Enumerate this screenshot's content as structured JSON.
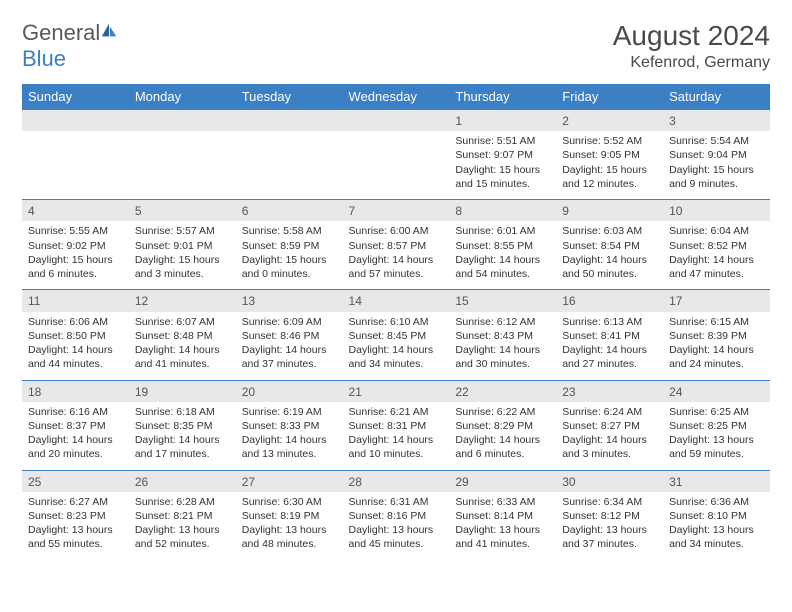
{
  "logo": {
    "text1": "General",
    "text2": "Blue"
  },
  "title": "August 2024",
  "subtitle": "Kefenrod, Germany",
  "colors": {
    "header_bg": "#3b7fc4",
    "header_text": "#ffffff",
    "daynum_bg": "#e8e8e8",
    "border": "#3b7fc4",
    "text": "#333333",
    "title_text": "#4a4a4a"
  },
  "day_names": [
    "Sunday",
    "Monday",
    "Tuesday",
    "Wednesday",
    "Thursday",
    "Friday",
    "Saturday"
  ],
  "weeks": [
    [
      {
        "num": "",
        "lines": [
          "",
          "",
          "",
          ""
        ]
      },
      {
        "num": "",
        "lines": [
          "",
          "",
          "",
          ""
        ]
      },
      {
        "num": "",
        "lines": [
          "",
          "",
          "",
          ""
        ]
      },
      {
        "num": "",
        "lines": [
          "",
          "",
          "",
          ""
        ]
      },
      {
        "num": "1",
        "lines": [
          "Sunrise: 5:51 AM",
          "Sunset: 9:07 PM",
          "Daylight: 15 hours",
          "and 15 minutes."
        ]
      },
      {
        "num": "2",
        "lines": [
          "Sunrise: 5:52 AM",
          "Sunset: 9:05 PM",
          "Daylight: 15 hours",
          "and 12 minutes."
        ]
      },
      {
        "num": "3",
        "lines": [
          "Sunrise: 5:54 AM",
          "Sunset: 9:04 PM",
          "Daylight: 15 hours",
          "and 9 minutes."
        ]
      }
    ],
    [
      {
        "num": "4",
        "lines": [
          "Sunrise: 5:55 AM",
          "Sunset: 9:02 PM",
          "Daylight: 15 hours",
          "and 6 minutes."
        ]
      },
      {
        "num": "5",
        "lines": [
          "Sunrise: 5:57 AM",
          "Sunset: 9:01 PM",
          "Daylight: 15 hours",
          "and 3 minutes."
        ]
      },
      {
        "num": "6",
        "lines": [
          "Sunrise: 5:58 AM",
          "Sunset: 8:59 PM",
          "Daylight: 15 hours",
          "and 0 minutes."
        ]
      },
      {
        "num": "7",
        "lines": [
          "Sunrise: 6:00 AM",
          "Sunset: 8:57 PM",
          "Daylight: 14 hours",
          "and 57 minutes."
        ]
      },
      {
        "num": "8",
        "lines": [
          "Sunrise: 6:01 AM",
          "Sunset: 8:55 PM",
          "Daylight: 14 hours",
          "and 54 minutes."
        ]
      },
      {
        "num": "9",
        "lines": [
          "Sunrise: 6:03 AM",
          "Sunset: 8:54 PM",
          "Daylight: 14 hours",
          "and 50 minutes."
        ]
      },
      {
        "num": "10",
        "lines": [
          "Sunrise: 6:04 AM",
          "Sunset: 8:52 PM",
          "Daylight: 14 hours",
          "and 47 minutes."
        ]
      }
    ],
    [
      {
        "num": "11",
        "lines": [
          "Sunrise: 6:06 AM",
          "Sunset: 8:50 PM",
          "Daylight: 14 hours",
          "and 44 minutes."
        ]
      },
      {
        "num": "12",
        "lines": [
          "Sunrise: 6:07 AM",
          "Sunset: 8:48 PM",
          "Daylight: 14 hours",
          "and 41 minutes."
        ]
      },
      {
        "num": "13",
        "lines": [
          "Sunrise: 6:09 AM",
          "Sunset: 8:46 PM",
          "Daylight: 14 hours",
          "and 37 minutes."
        ]
      },
      {
        "num": "14",
        "lines": [
          "Sunrise: 6:10 AM",
          "Sunset: 8:45 PM",
          "Daylight: 14 hours",
          "and 34 minutes."
        ]
      },
      {
        "num": "15",
        "lines": [
          "Sunrise: 6:12 AM",
          "Sunset: 8:43 PM",
          "Daylight: 14 hours",
          "and 30 minutes."
        ]
      },
      {
        "num": "16",
        "lines": [
          "Sunrise: 6:13 AM",
          "Sunset: 8:41 PM",
          "Daylight: 14 hours",
          "and 27 minutes."
        ]
      },
      {
        "num": "17",
        "lines": [
          "Sunrise: 6:15 AM",
          "Sunset: 8:39 PM",
          "Daylight: 14 hours",
          "and 24 minutes."
        ]
      }
    ],
    [
      {
        "num": "18",
        "lines": [
          "Sunrise: 6:16 AM",
          "Sunset: 8:37 PM",
          "Daylight: 14 hours",
          "and 20 minutes."
        ]
      },
      {
        "num": "19",
        "lines": [
          "Sunrise: 6:18 AM",
          "Sunset: 8:35 PM",
          "Daylight: 14 hours",
          "and 17 minutes."
        ]
      },
      {
        "num": "20",
        "lines": [
          "Sunrise: 6:19 AM",
          "Sunset: 8:33 PM",
          "Daylight: 14 hours",
          "and 13 minutes."
        ]
      },
      {
        "num": "21",
        "lines": [
          "Sunrise: 6:21 AM",
          "Sunset: 8:31 PM",
          "Daylight: 14 hours",
          "and 10 minutes."
        ]
      },
      {
        "num": "22",
        "lines": [
          "Sunrise: 6:22 AM",
          "Sunset: 8:29 PM",
          "Daylight: 14 hours",
          "and 6 minutes."
        ]
      },
      {
        "num": "23",
        "lines": [
          "Sunrise: 6:24 AM",
          "Sunset: 8:27 PM",
          "Daylight: 14 hours",
          "and 3 minutes."
        ]
      },
      {
        "num": "24",
        "lines": [
          "Sunrise: 6:25 AM",
          "Sunset: 8:25 PM",
          "Daylight: 13 hours",
          "and 59 minutes."
        ]
      }
    ],
    [
      {
        "num": "25",
        "lines": [
          "Sunrise: 6:27 AM",
          "Sunset: 8:23 PM",
          "Daylight: 13 hours",
          "and 55 minutes."
        ]
      },
      {
        "num": "26",
        "lines": [
          "Sunrise: 6:28 AM",
          "Sunset: 8:21 PM",
          "Daylight: 13 hours",
          "and 52 minutes."
        ]
      },
      {
        "num": "27",
        "lines": [
          "Sunrise: 6:30 AM",
          "Sunset: 8:19 PM",
          "Daylight: 13 hours",
          "and 48 minutes."
        ]
      },
      {
        "num": "28",
        "lines": [
          "Sunrise: 6:31 AM",
          "Sunset: 8:16 PM",
          "Daylight: 13 hours",
          "and 45 minutes."
        ]
      },
      {
        "num": "29",
        "lines": [
          "Sunrise: 6:33 AM",
          "Sunset: 8:14 PM",
          "Daylight: 13 hours",
          "and 41 minutes."
        ]
      },
      {
        "num": "30",
        "lines": [
          "Sunrise: 6:34 AM",
          "Sunset: 8:12 PM",
          "Daylight: 13 hours",
          "and 37 minutes."
        ]
      },
      {
        "num": "31",
        "lines": [
          "Sunrise: 6:36 AM",
          "Sunset: 8:10 PM",
          "Daylight: 13 hours",
          "and 34 minutes."
        ]
      }
    ]
  ]
}
